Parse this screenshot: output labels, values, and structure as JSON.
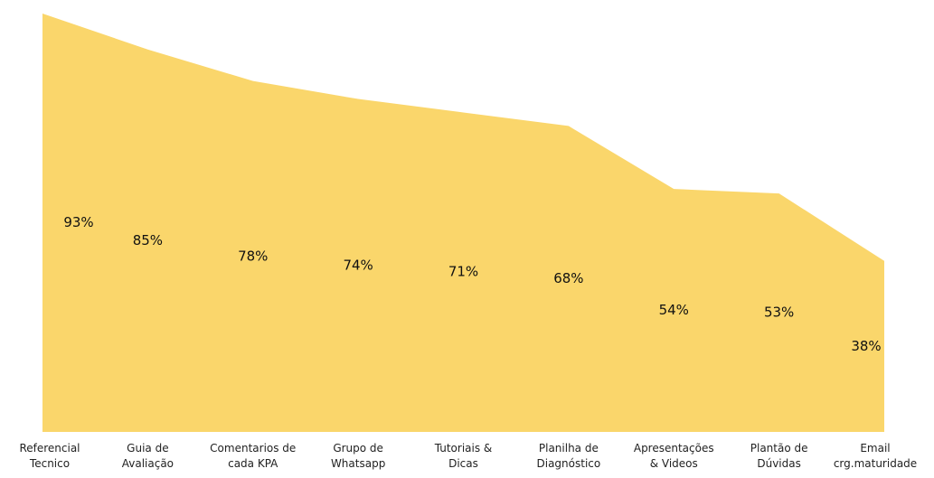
{
  "chart_data": {
    "type": "area",
    "categories": [
      "Referencial\nTecnico",
      "Guia de\nAvaliação",
      "Comentarios de\ncada KPA",
      "Grupo de\nWhatsapp",
      "Tutoriais &\nDicas",
      "Planilha de\nDiagnóstico",
      "Apresentações\n& Videos",
      "Plantão de\nDúvidas",
      "Email\ncrg.maturidade"
    ],
    "values": [
      93,
      85,
      78,
      74,
      71,
      68,
      54,
      53,
      38
    ],
    "value_labels": [
      "93%",
      "85%",
      "78%",
      "74%",
      "71%",
      "68%",
      "54%",
      "53%",
      "38%"
    ],
    "color": "#fad66b",
    "ylim": [
      0,
      95
    ]
  }
}
